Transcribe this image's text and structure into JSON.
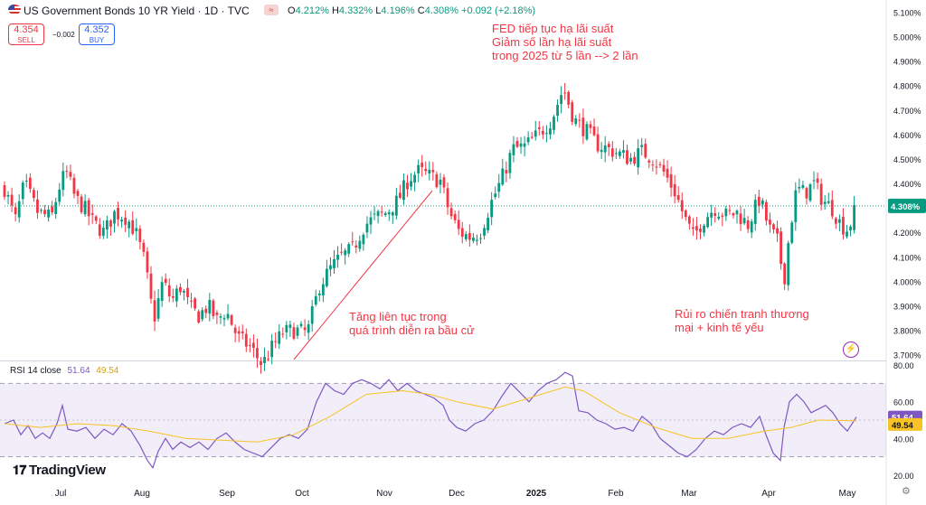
{
  "header": {
    "title": "US Government Bonds 10 YR Yield · 1D · TVC",
    "ohlc": [
      {
        "label": "O",
        "value": "4.212%"
      },
      {
        "label": "H",
        "value": "4.332%"
      },
      {
        "label": "L",
        "value": "4.196%"
      },
      {
        "label": "C",
        "value": "4.308%"
      }
    ],
    "change": "+0.092 (+2.18%)"
  },
  "trade": {
    "sell_price": "4.354",
    "sell_label": "SELL",
    "spread": "−0.002",
    "buy_price": "4.352",
    "buy_label": "BUY"
  },
  "annotations": {
    "fed": [
      "FED tiếp tục hạ lãi suất",
      "Giảm số lần hạ lãi suất",
      "trong 2025 từ 5 lần --> 2 lần"
    ],
    "election": [
      "Tăng liên tục trong",
      "quá trình diễn ra bầu cử"
    ],
    "trade_war": [
      "Rủi ro chiến tranh thương",
      "mại + kinh tế yếu"
    ]
  },
  "rsi": {
    "label": "RSI 14 close",
    "value": "51.64",
    "ma_value": "49.54",
    "value_color": "#7e57c2",
    "ma_color": "#f7c325"
  },
  "branding": {
    "logo_text": "TradingView"
  },
  "colors": {
    "up": "#089981",
    "down": "#f23645",
    "rsi": "#7e57c2",
    "rsi_ma": "#f7c325"
  },
  "chart_data": [
    {
      "type": "candlestick",
      "title": "US Government Bonds 10 YR Yield · 1D · TVC",
      "x_ticks": [
        "Jul",
        "Aug",
        "Sep",
        "Oct",
        "Nov",
        "Dec",
        "2025",
        "Feb",
        "Mar",
        "Apr",
        "May"
      ],
      "y_ticks": [
        "3.700%",
        "3.800%",
        "3.900%",
        "4.000%",
        "4.100%",
        "4.200%",
        "4.300%",
        "4.400%",
        "4.500%",
        "4.600%",
        "4.700%",
        "4.800%",
        "4.900%",
        "5.000%",
        "5.100%"
      ],
      "ylim": [
        3.68,
        5.12
      ],
      "last_price_label": "4.308%",
      "last_price": 4.308,
      "close_path": [
        [
          0,
          4.38
        ],
        [
          12,
          4.25
        ],
        [
          22,
          4.4
        ],
        [
          37,
          4.28
        ],
        [
          52,
          4.26
        ],
        [
          60,
          4.38
        ],
        [
          68,
          4.45
        ],
        [
          78,
          4.34
        ],
        [
          88,
          4.3
        ],
        [
          98,
          4.24
        ],
        [
          110,
          4.2
        ],
        [
          122,
          4.28
        ],
        [
          135,
          4.26
        ],
        [
          145,
          4.2
        ],
        [
          155,
          4.08
        ],
        [
          165,
          3.84
        ],
        [
          175,
          4.0
        ],
        [
          185,
          3.92
        ],
        [
          195,
          3.98
        ],
        [
          205,
          3.89
        ],
        [
          215,
          3.86
        ],
        [
          225,
          3.9
        ],
        [
          235,
          3.84
        ],
        [
          245,
          3.88
        ],
        [
          258,
          3.77
        ],
        [
          272,
          3.73
        ],
        [
          285,
          3.66
        ],
        [
          296,
          3.73
        ],
        [
          308,
          3.79
        ],
        [
          320,
          3.8
        ],
        [
          335,
          3.79
        ],
        [
          348,
          3.98
        ],
        [
          360,
          4.05
        ],
        [
          372,
          4.1
        ],
        [
          385,
          4.13
        ],
        [
          398,
          4.23
        ],
        [
          410,
          4.26
        ],
        [
          422,
          4.28
        ],
        [
          435,
          4.33
        ],
        [
          447,
          4.42
        ],
        [
          458,
          4.45
        ],
        [
          470,
          4.43
        ],
        [
          482,
          4.41
        ],
        [
          492,
          4.28
        ],
        [
          503,
          4.2
        ],
        [
          515,
          4.18
        ],
        [
          526,
          4.2
        ],
        [
          538,
          4.32
        ],
        [
          550,
          4.42
        ],
        [
          562,
          4.54
        ],
        [
          575,
          4.55
        ],
        [
          590,
          4.6
        ],
        [
          605,
          4.66
        ],
        [
          618,
          4.79
        ],
        [
          630,
          4.66
        ],
        [
          642,
          4.62
        ],
        [
          655,
          4.56
        ],
        [
          668,
          4.54
        ],
        [
          680,
          4.52
        ],
        [
          692,
          4.5
        ],
        [
          705,
          4.53
        ],
        [
          718,
          4.5
        ],
        [
          730,
          4.44
        ],
        [
          742,
          4.36
        ],
        [
          752,
          4.26
        ],
        [
          762,
          4.18
        ],
        [
          772,
          4.25
        ],
        [
          785,
          4.3
        ],
        [
          798,
          4.27
        ],
        [
          810,
          4.28
        ],
        [
          822,
          4.23
        ],
        [
          835,
          4.34
        ],
        [
          845,
          4.22
        ],
        [
          855,
          4.16
        ],
        [
          862,
          4.0
        ],
        [
          868,
          4.2
        ],
        [
          876,
          4.38
        ],
        [
          885,
          4.36
        ],
        [
          895,
          4.4
        ],
        [
          905,
          4.33
        ],
        [
          915,
          4.3
        ],
        [
          925,
          4.23
        ],
        [
          933,
          4.21
        ],
        [
          942,
          4.308
        ]
      ],
      "trendline": {
        "from": [
          320,
          3.68
        ],
        "to": [
          473,
          4.37
        ]
      }
    },
    {
      "type": "line",
      "title": "RSI 14 close",
      "y_ticks": [
        "20.00",
        "40.00",
        "60.00",
        "80.00"
      ],
      "ylim": [
        17,
        81
      ],
      "bands": {
        "upper": 70,
        "lower": 30
      },
      "series": [
        {
          "name": "RSI",
          "color": "#7e57c2",
          "points": [
            [
              0,
              48
            ],
            [
              10,
              50
            ],
            [
              18,
              42
            ],
            [
              26,
              47
            ],
            [
              34,
              40
            ],
            [
              42,
              43
            ],
            [
              50,
              40
            ],
            [
              58,
              48
            ],
            [
              64,
              58
            ],
            [
              70,
              45
            ],
            [
              80,
              44
            ],
            [
              90,
              46
            ],
            [
              100,
              40
            ],
            [
              110,
              45
            ],
            [
              120,
              42
            ],
            [
              130,
              48
            ],
            [
              140,
              44
            ],
            [
              150,
              36
            ],
            [
              158,
              28
            ],
            [
              164,
              24
            ],
            [
              170,
              33
            ],
            [
              178,
              40
            ],
            [
              186,
              34
            ],
            [
              195,
              38
            ],
            [
              205,
              35
            ],
            [
              215,
              38
            ],
            [
              225,
              34
            ],
            [
              235,
              40
            ],
            [
              245,
              43
            ],
            [
              255,
              38
            ],
            [
              265,
              34
            ],
            [
              275,
              32
            ],
            [
              285,
              30
            ],
            [
              295,
              35
            ],
            [
              305,
              40
            ],
            [
              315,
              42
            ],
            [
              325,
              40
            ],
            [
              335,
              45
            ],
            [
              345,
              60
            ],
            [
              355,
              70
            ],
            [
              365,
              66
            ],
            [
              375,
              64
            ],
            [
              385,
              70
            ],
            [
              395,
              72
            ],
            [
              405,
              70
            ],
            [
              415,
              67
            ],
            [
              425,
              72
            ],
            [
              435,
              66
            ],
            [
              445,
              70
            ],
            [
              455,
              66
            ],
            [
              465,
              64
            ],
            [
              475,
              62
            ],
            [
              485,
              58
            ],
            [
              492,
              50
            ],
            [
              500,
              46
            ],
            [
              510,
              44
            ],
            [
              520,
              48
            ],
            [
              530,
              50
            ],
            [
              540,
              55
            ],
            [
              550,
              63
            ],
            [
              560,
              70
            ],
            [
              570,
              65
            ],
            [
              580,
              60
            ],
            [
              590,
              66
            ],
            [
              600,
              70
            ],
            [
              610,
              72
            ],
            [
              620,
              76
            ],
            [
              628,
              74
            ],
            [
              635,
              55
            ],
            [
              645,
              54
            ],
            [
              655,
              50
            ],
            [
              665,
              48
            ],
            [
              675,
              45
            ],
            [
              685,
              46
            ],
            [
              695,
              44
            ],
            [
              705,
              52
            ],
            [
              715,
              48
            ],
            [
              725,
              40
            ],
            [
              735,
              36
            ],
            [
              745,
              32
            ],
            [
              755,
              30
            ],
            [
              765,
              34
            ],
            [
              775,
              40
            ],
            [
              785,
              44
            ],
            [
              795,
              42
            ],
            [
              805,
              46
            ],
            [
              815,
              48
            ],
            [
              825,
              46
            ],
            [
              835,
              52
            ],
            [
              842,
              42
            ],
            [
              850,
              32
            ],
            [
              858,
              28
            ],
            [
              862,
              46
            ],
            [
              868,
              60
            ],
            [
              876,
              64
            ],
            [
              884,
              60
            ],
            [
              892,
              54
            ],
            [
              900,
              56
            ],
            [
              908,
              58
            ],
            [
              916,
              54
            ],
            [
              924,
              48
            ],
            [
              932,
              44
            ],
            [
              942,
              51.64
            ]
          ]
        },
        {
          "name": "RSI-based MA",
          "color": "#f7c325",
          "points": [
            [
              0,
              48
            ],
            [
              40,
              46
            ],
            [
              80,
              48
            ],
            [
              120,
              47
            ],
            [
              160,
              44
            ],
            [
              200,
              40
            ],
            [
              240,
              39
            ],
            [
              280,
              38
            ],
            [
              320,
              42
            ],
            [
              360,
              52
            ],
            [
              400,
              64
            ],
            [
              440,
              66
            ],
            [
              470,
              64
            ],
            [
              500,
              60
            ],
            [
              540,
              56
            ],
            [
              580,
              62
            ],
            [
              620,
              68
            ],
            [
              640,
              66
            ],
            [
              680,
              54
            ],
            [
              720,
              46
            ],
            [
              760,
              40
            ],
            [
              800,
              40
            ],
            [
              840,
              44
            ],
            [
              870,
              46
            ],
            [
              900,
              50
            ],
            [
              942,
              49.54
            ]
          ]
        }
      ]
    }
  ]
}
